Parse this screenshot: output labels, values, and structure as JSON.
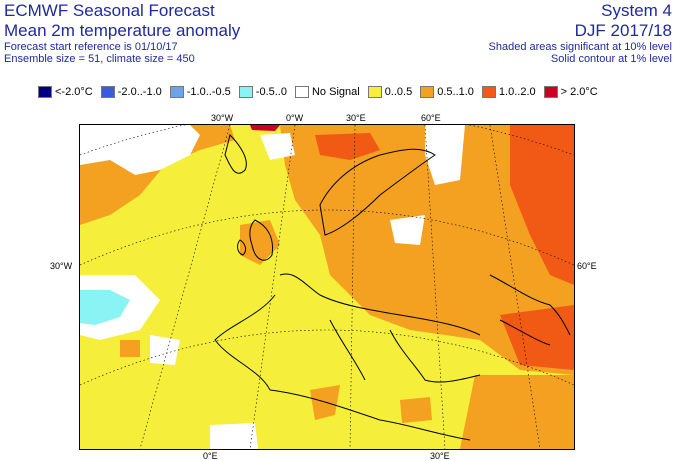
{
  "header": {
    "title": "ECMWF Seasonal Forecast",
    "subtitle": "Mean 2m temperature anomaly",
    "forecast_start": "Forecast start reference is 01/10/17",
    "ensemble": "Ensemble size = 51, climate size = 450",
    "system": "System 4",
    "season": "DJF 2017/18",
    "significance_shaded": "Shaded areas significant at 10% level",
    "significance_contour": "Solid contour at 1% level"
  },
  "legend": [
    {
      "label": "<-2.0°C",
      "color": "#000080"
    },
    {
      "label": "-2.0..-1.0",
      "color": "#3a5bdc"
    },
    {
      "label": "-1.0..-0.5",
      "color": "#6aa4ea"
    },
    {
      "label": "-0.5..0",
      "color": "#8af3f3"
    },
    {
      "label": "No Signal",
      "color": "#ffffff"
    },
    {
      "label": "0..0.5",
      "color": "#f5ee3a"
    },
    {
      "label": "0.5..1.0",
      "color": "#f4a020"
    },
    {
      "label": "1.0..2.0",
      "color": "#f05a14"
    },
    {
      "label": "> 2.0°C",
      "color": "#cc0022"
    }
  ],
  "graticule": {
    "top": [
      "30°W",
      "0°W",
      "30°E",
      "60°E"
    ],
    "left": "30°W",
    "right": "60°E",
    "bottom": [
      "0°E",
      "30°E"
    ]
  }
}
